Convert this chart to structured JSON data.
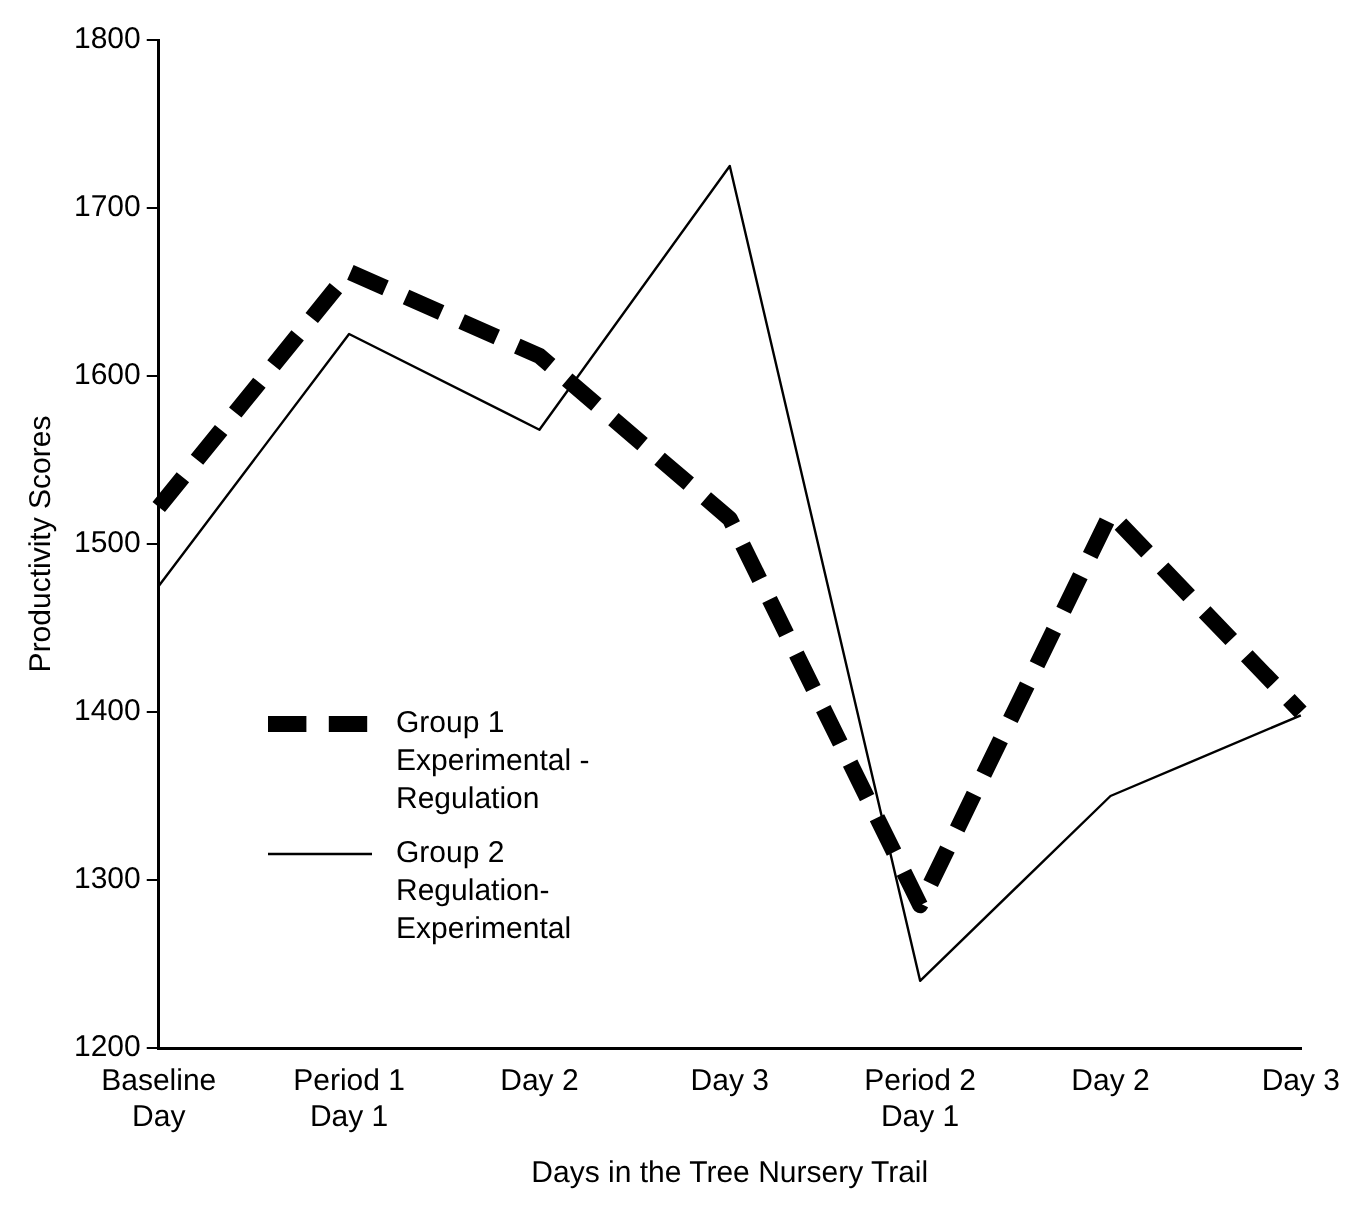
{
  "chart_data": {
    "type": "line",
    "xlabel": "Days in the Tree Nursery Trail",
    "ylabel": "Productivity Scores",
    "categories": [
      "Baseline Day",
      "Period 1 Day 1",
      "Day 2",
      "Day 3",
      "Period 2 Day 1",
      "Day 2",
      "Day 3"
    ],
    "series": [
      {
        "name": "Group 1 Experimental -Regulation",
        "color": "#000000",
        "line_style": "dashed",
        "values": [
          1522,
          1662,
          1612,
          1515,
          1285,
          1518,
          1400
        ]
      },
      {
        "name": "Group 2 Regulation-Experimental",
        "color": "#000000",
        "line_style": "solid",
        "values": [
          1475,
          1625,
          1568,
          1725,
          1240,
          1350,
          1398
        ]
      }
    ],
    "ylim": [
      1200,
      1800
    ],
    "yticks": [
      1200,
      1300,
      1400,
      1500,
      1600,
      1700,
      1800
    ],
    "grid": false,
    "legend": "left",
    "marker": "none"
  }
}
